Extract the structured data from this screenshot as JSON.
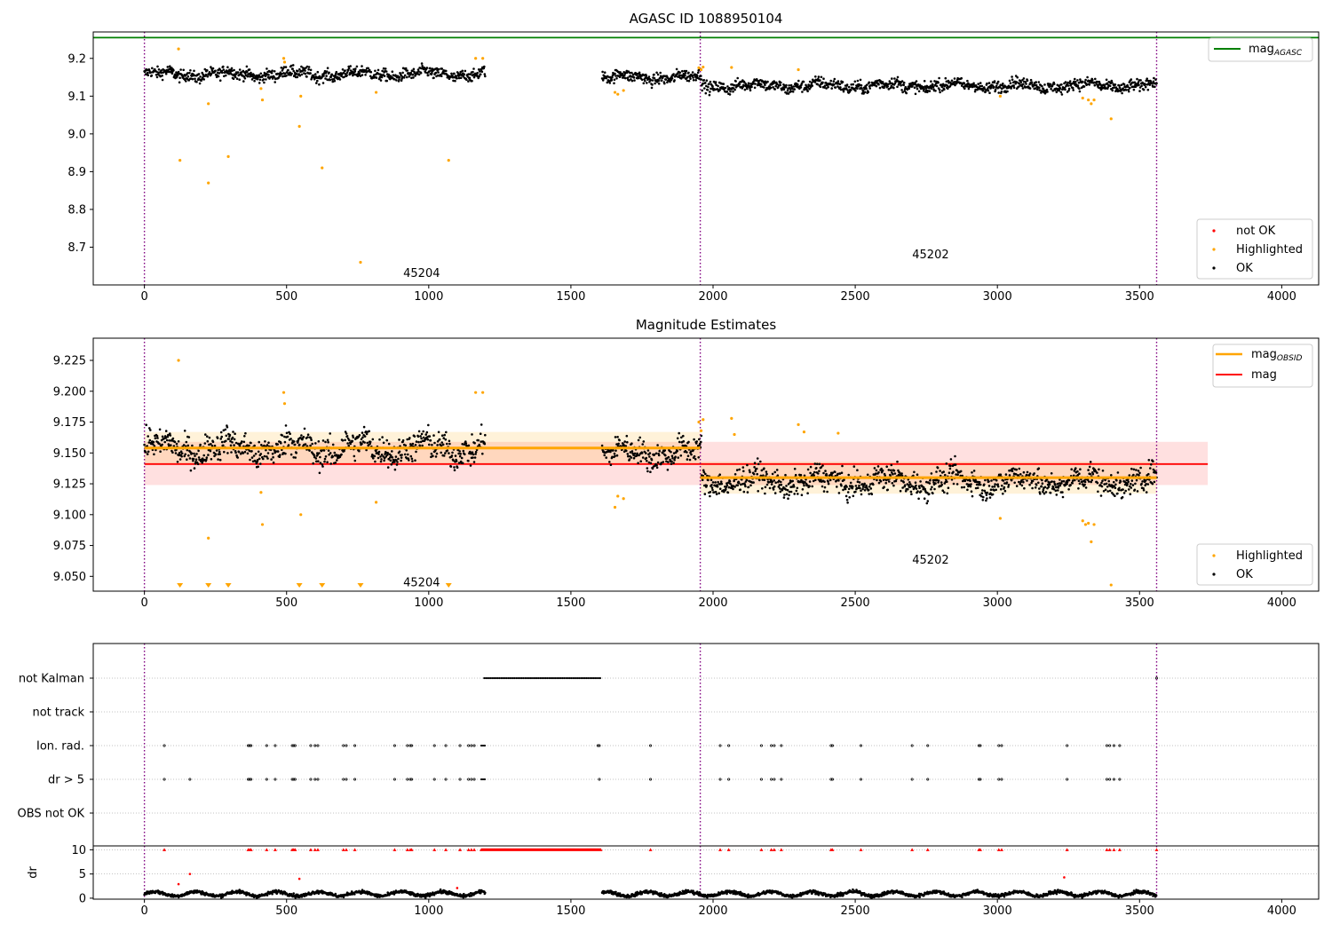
{
  "chart_data": [
    {
      "type": "scatter",
      "title": "AGASC ID 1088950104",
      "xlim": [
        -180,
        4130
      ],
      "ylim": [
        8.6,
        9.27
      ],
      "xticks": [
        0,
        500,
        1000,
        1500,
        2000,
        2500,
        3000,
        3500,
        4000
      ],
      "xtick_labels": [
        "0",
        "500",
        "1000",
        "1500",
        "2000",
        "2500",
        "3000",
        "3500",
        "4000"
      ],
      "yticks": [
        8.7,
        8.8,
        8.9,
        9.0,
        9.1,
        9.2
      ],
      "ytick_labels": [
        "8.7",
        "8.8",
        "8.9",
        "9.0",
        "9.1",
        "9.2"
      ],
      "lines": [
        {
          "name": "mag_AGASC",
          "label_main": "mag",
          "label_sub": "AGASC",
          "y": 9.255,
          "color": "#008000"
        }
      ],
      "segments": [
        {
          "x_start": 0,
          "x_end": 1200,
          "center": 9.158
        },
        {
          "x_start": 1610,
          "x_end": 1960,
          "center": 9.15
        },
        {
          "x_start": 1960,
          "x_end": 3560,
          "center": 9.128
        }
      ],
      "highlighted_points": [
        [
          120,
          9.225
        ],
        [
          125,
          8.93
        ],
        [
          225,
          8.87
        ],
        [
          225,
          9.08
        ],
        [
          295,
          8.94
        ],
        [
          410,
          9.12
        ],
        [
          415,
          9.09
        ],
        [
          490,
          9.2
        ],
        [
          493,
          9.19
        ],
        [
          545,
          9.02
        ],
        [
          550,
          9.1
        ],
        [
          625,
          8.91
        ],
        [
          760,
          8.66
        ],
        [
          815,
          9.11
        ],
        [
          1070,
          8.93
        ],
        [
          1165,
          9.2
        ],
        [
          1190,
          9.2
        ],
        [
          1655,
          9.11
        ],
        [
          1665,
          9.105
        ],
        [
          1685,
          9.115
        ],
        [
          1950,
          9.175
        ],
        [
          1958,
          9.17
        ],
        [
          1965,
          9.177
        ],
        [
          2065,
          9.176
        ],
        [
          2300,
          9.17
        ],
        [
          3010,
          9.1
        ],
        [
          3300,
          9.095
        ],
        [
          3320,
          9.09
        ],
        [
          3330,
          9.08
        ],
        [
          3340,
          9.09
        ],
        [
          3400,
          9.04
        ]
      ],
      "series_names": [
        "not OK",
        "Highlighted",
        "OK"
      ],
      "obsid_boundaries": [
        0,
        1955,
        3560
      ],
      "annotations": [
        {
          "text": "45204",
          "x": 975,
          "y": 8.63
        },
        {
          "text": "45202",
          "x": 2765,
          "y": 8.68
        }
      ],
      "legend_lines_position": "upper right",
      "legend_points_position": "lower right"
    },
    {
      "type": "scatter",
      "title": "Magnitude Estimates",
      "xlim": [
        -180,
        4130
      ],
      "ylim": [
        9.038,
        9.243
      ],
      "xticks": [
        0,
        500,
        1000,
        1500,
        2000,
        2500,
        3000,
        3500,
        4000
      ],
      "xtick_labels": [
        "0",
        "500",
        "1000",
        "1500",
        "2000",
        "2500",
        "3000",
        "3500",
        "4000"
      ],
      "yticks": [
        9.05,
        9.075,
        9.1,
        9.125,
        9.15,
        9.175,
        9.2,
        9.225
      ],
      "ytick_labels": [
        "9.050",
        "9.075",
        "9.100",
        "9.125",
        "9.150",
        "9.175",
        "9.200",
        "9.225"
      ],
      "mag": {
        "value": 9.141,
        "lower": 9.124,
        "upper": 9.159,
        "x_start": 0,
        "x_end": 3740,
        "color": "#ff0000"
      },
      "mag_obsid": [
        {
          "value": 9.154,
          "lower": 9.141,
          "upper": 9.167,
          "x_start": 0,
          "x_end": 1955
        },
        {
          "value": 9.13,
          "lower": 9.117,
          "upper": 9.143,
          "x_start": 1955,
          "x_end": 3560
        }
      ],
      "segments": [
        {
          "x_start": 0,
          "x_end": 1200,
          "center": 9.154,
          "spread": 0.015
        },
        {
          "x_start": 1610,
          "x_end": 1960,
          "center": 9.15,
          "spread": 0.013
        },
        {
          "x_start": 1960,
          "x_end": 3560,
          "center": 9.127,
          "spread": 0.013
        }
      ],
      "highlighted_points": [
        [
          120,
          9.225
        ],
        [
          225,
          9.081
        ],
        [
          410,
          9.118
        ],
        [
          415,
          9.092
        ],
        [
          490,
          9.199
        ],
        [
          493,
          9.19
        ],
        [
          550,
          9.1
        ],
        [
          815,
          9.11
        ],
        [
          1165,
          9.199
        ],
        [
          1190,
          9.199
        ],
        [
          1655,
          9.106
        ],
        [
          1665,
          9.115
        ],
        [
          1685,
          9.113
        ],
        [
          1950,
          9.175
        ],
        [
          1958,
          9.168
        ],
        [
          1965,
          9.177
        ],
        [
          2065,
          9.178
        ],
        [
          2075,
          9.165
        ],
        [
          2300,
          9.173
        ],
        [
          2320,
          9.167
        ],
        [
          2440,
          9.166
        ],
        [
          3010,
          9.097
        ],
        [
          3300,
          9.095
        ],
        [
          3310,
          9.092
        ],
        [
          3320,
          9.093
        ],
        [
          3330,
          9.078
        ],
        [
          3340,
          9.092
        ],
        [
          3400,
          9.043
        ]
      ],
      "below_range_markers_x": [
        125,
        225,
        295,
        545,
        625,
        760,
        1070
      ],
      "legend_lines": [
        {
          "label_main": "mag",
          "label_sub": "OBSID",
          "color": "#ffa500"
        },
        {
          "label_main": "mag",
          "label_sub": "",
          "color": "#ff0000"
        }
      ],
      "series_names": [
        "Highlighted",
        "OK"
      ],
      "obsid_boundaries": [
        0,
        1955,
        3560
      ],
      "annotations": [
        {
          "text": "45204",
          "x": 975,
          "y": 9.045
        },
        {
          "text": "45202",
          "x": 2765,
          "y": 9.063
        }
      ],
      "legend_lines_position": "upper right",
      "legend_points_position": "lower right"
    },
    {
      "type": "scatter",
      "title": "",
      "xlim": [
        -180,
        4130
      ],
      "categories": [
        "not Kalman",
        "not track",
        "Ion. rad.",
        "dr > 5",
        "OBS not OK"
      ],
      "flags": {
        "not Kalman": {
          "ranges": [
            [
              1195,
              1605
            ]
          ],
          "points": [
            3560
          ]
        },
        "not track": {
          "ranges": [],
          "points": []
        },
        "Ion. rad.": {
          "ranges": [
            [
              1185,
              1200
            ]
          ],
          "points": [
            70,
            365,
            370,
            375,
            430,
            460,
            520,
            525,
            530,
            585,
            600,
            610,
            700,
            710,
            740,
            880,
            925,
            935,
            940,
            1020,
            1060,
            1110,
            1140,
            1150,
            1160,
            1595,
            1600,
            1780,
            2025,
            2055,
            2170,
            2205,
            2215,
            2240,
            2415,
            2420,
            2520,
            2700,
            2755,
            2935,
            2940,
            3005,
            3015,
            3245,
            3385,
            3395,
            3410,
            3430
          ]
        },
        "dr > 5": {
          "ranges": [
            [
              1185,
              1200
            ]
          ],
          "points": [
            70,
            160,
            365,
            370,
            375,
            430,
            460,
            520,
            525,
            530,
            585,
            600,
            610,
            700,
            710,
            740,
            880,
            925,
            935,
            940,
            1020,
            1060,
            1110,
            1140,
            1150,
            1160,
            1600,
            1780,
            2025,
            2055,
            2170,
            2205,
            2215,
            2240,
            2415,
            2420,
            2520,
            2700,
            2755,
            2935,
            2940,
            3005,
            3015,
            3245,
            3385,
            3395,
            3410,
            3430
          ]
        },
        "OBS not OK": {
          "ranges": [],
          "points": []
        }
      },
      "obsid_boundaries": [
        0,
        1955,
        3560
      ]
    },
    {
      "type": "scatter",
      "title": "",
      "xlim": [
        -180,
        4130
      ],
      "ylim": [
        -0.2,
        10.8
      ],
      "ylabel": "dr",
      "xticks": [
        0,
        500,
        1000,
        1500,
        2000,
        2500,
        3000,
        3500,
        4000
      ],
      "xtick_labels": [
        "0",
        "500",
        "1000",
        "1500",
        "2000",
        "2500",
        "3000",
        "3500",
        "4000"
      ],
      "yticks": [
        0,
        5,
        10
      ],
      "ytick_labels": [
        "0",
        "5",
        "10"
      ],
      "segments": [
        {
          "x_start": 0,
          "x_end": 1200,
          "center": 0.9
        },
        {
          "x_start": 1610,
          "x_end": 3560,
          "center": 0.9
        }
      ],
      "clipped_points_y": 10,
      "clipped_range": [
        1185,
        1605
      ],
      "clipped_points_x": [
        70,
        365,
        370,
        375,
        430,
        460,
        520,
        525,
        530,
        585,
        600,
        610,
        700,
        710,
        740,
        880,
        925,
        935,
        940,
        1020,
        1060,
        1110,
        1140,
        1150,
        1160,
        1780,
        2025,
        2055,
        2170,
        2205,
        2215,
        2240,
        2415,
        2420,
        2520,
        2700,
        2755,
        2935,
        2940,
        3005,
        3015,
        3245,
        3385,
        3395,
        3410,
        3430,
        3560
      ],
      "outlier_points": [
        [
          120,
          2.9
        ],
        [
          160,
          5.0
        ],
        [
          545,
          4.0
        ],
        [
          1100,
          2.1
        ],
        [
          3235,
          4.3
        ]
      ],
      "obsid_boundaries": [
        0,
        1955,
        3560
      ]
    }
  ]
}
